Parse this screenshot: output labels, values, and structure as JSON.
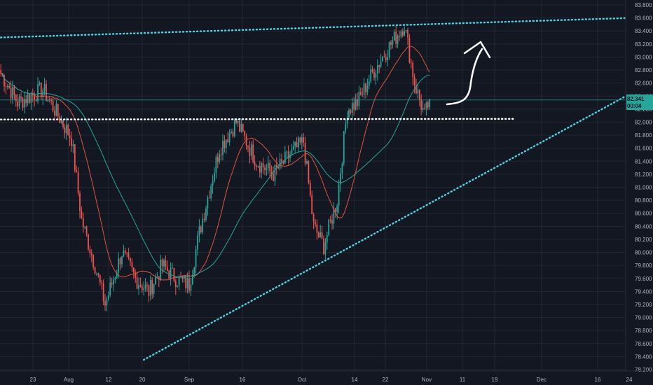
{
  "chart_data": {
    "type": "candlestick",
    "title": "",
    "xlabel": "",
    "ylabel": "",
    "x_axis": {
      "labels": [
        "23",
        "Aug",
        "12",
        "20",
        "Sep",
        "16",
        "Oct",
        "14",
        "22",
        "Nov",
        "11",
        "19",
        "Dec",
        "16",
        "24"
      ]
    },
    "y_axis": {
      "range": [
        78.2,
        83.8
      ],
      "labels": [
        "83.800",
        "83.600",
        "83.400",
        "83.200",
        "83.000",
        "82.800",
        "82.600",
        "82.400",
        "82.200",
        "82.000",
        "81.800",
        "81.600",
        "81.400",
        "81.200",
        "81.000",
        "80.800",
        "80.600",
        "80.400",
        "80.200",
        "80.000",
        "79.800",
        "79.600",
        "79.400",
        "79.200",
        "79.000",
        "78.800",
        "78.600",
        "78.400",
        "78.200"
      ]
    },
    "grid": true,
    "current_price": {
      "value": "82.341",
      "countdown": "00:04"
    },
    "price_path_anchors": [
      {
        "x": 0,
        "y": 82.75
      },
      {
        "x": 10,
        "y": 82.3
      },
      {
        "x": 25,
        "y": 82.5
      },
      {
        "x": 42,
        "y": 81.75
      },
      {
        "x": 48,
        "y": 80.5
      },
      {
        "x": 56,
        "y": 79.8
      },
      {
        "x": 62,
        "y": 79.2
      },
      {
        "x": 72,
        "y": 80.0
      },
      {
        "x": 80,
        "y": 79.6
      },
      {
        "x": 88,
        "y": 79.4
      },
      {
        "x": 96,
        "y": 79.8
      },
      {
        "x": 104,
        "y": 79.6
      },
      {
        "x": 112,
        "y": 79.5
      },
      {
        "x": 118,
        "y": 80.3
      },
      {
        "x": 130,
        "y": 81.6
      },
      {
        "x": 140,
        "y": 82.0
      },
      {
        "x": 152,
        "y": 81.4
      },
      {
        "x": 162,
        "y": 81.2
      },
      {
        "x": 172,
        "y": 81.5
      },
      {
        "x": 180,
        "y": 81.7
      },
      {
        "x": 186,
        "y": 80.4
      },
      {
        "x": 192,
        "y": 80.1
      },
      {
        "x": 200,
        "y": 80.8
      },
      {
        "x": 206,
        "y": 82.2
      },
      {
        "x": 212,
        "y": 82.3
      },
      {
        "x": 222,
        "y": 82.8
      },
      {
        "x": 232,
        "y": 83.2
      },
      {
        "x": 240,
        "y": 83.5
      },
      {
        "x": 246,
        "y": 82.6
      },
      {
        "x": 252,
        "y": 82.1
      },
      {
        "x": 255,
        "y": 82.34
      }
    ],
    "moving_averages": [
      {
        "name": "",
        "color": "#e0533c"
      },
      {
        "name": "",
        "color": "#26a69a"
      }
    ],
    "trendlines": [
      {
        "style": "dotted",
        "color": "#4dd0e1",
        "from": {
          "x": 0,
          "y": 83.3
        },
        "to": {
          "x": 400,
          "y": 83.62
        }
      },
      {
        "style": "dotted",
        "color": "#4dd0e1",
        "from": {
          "x": 85,
          "y": 78.35
        },
        "to": {
          "x": 400,
          "y": 82.8
        }
      },
      {
        "style": "dotted",
        "color": "#ffffff",
        "from": {
          "x": 0,
          "y": 82.04
        },
        "to": {
          "x": 305,
          "y": 82.05
        }
      }
    ],
    "colors": {
      "up": "#26a69a",
      "down": "#ef5350",
      "background": "#131722",
      "grid": "#232733",
      "axis_text": "#b2b5be"
    }
  }
}
